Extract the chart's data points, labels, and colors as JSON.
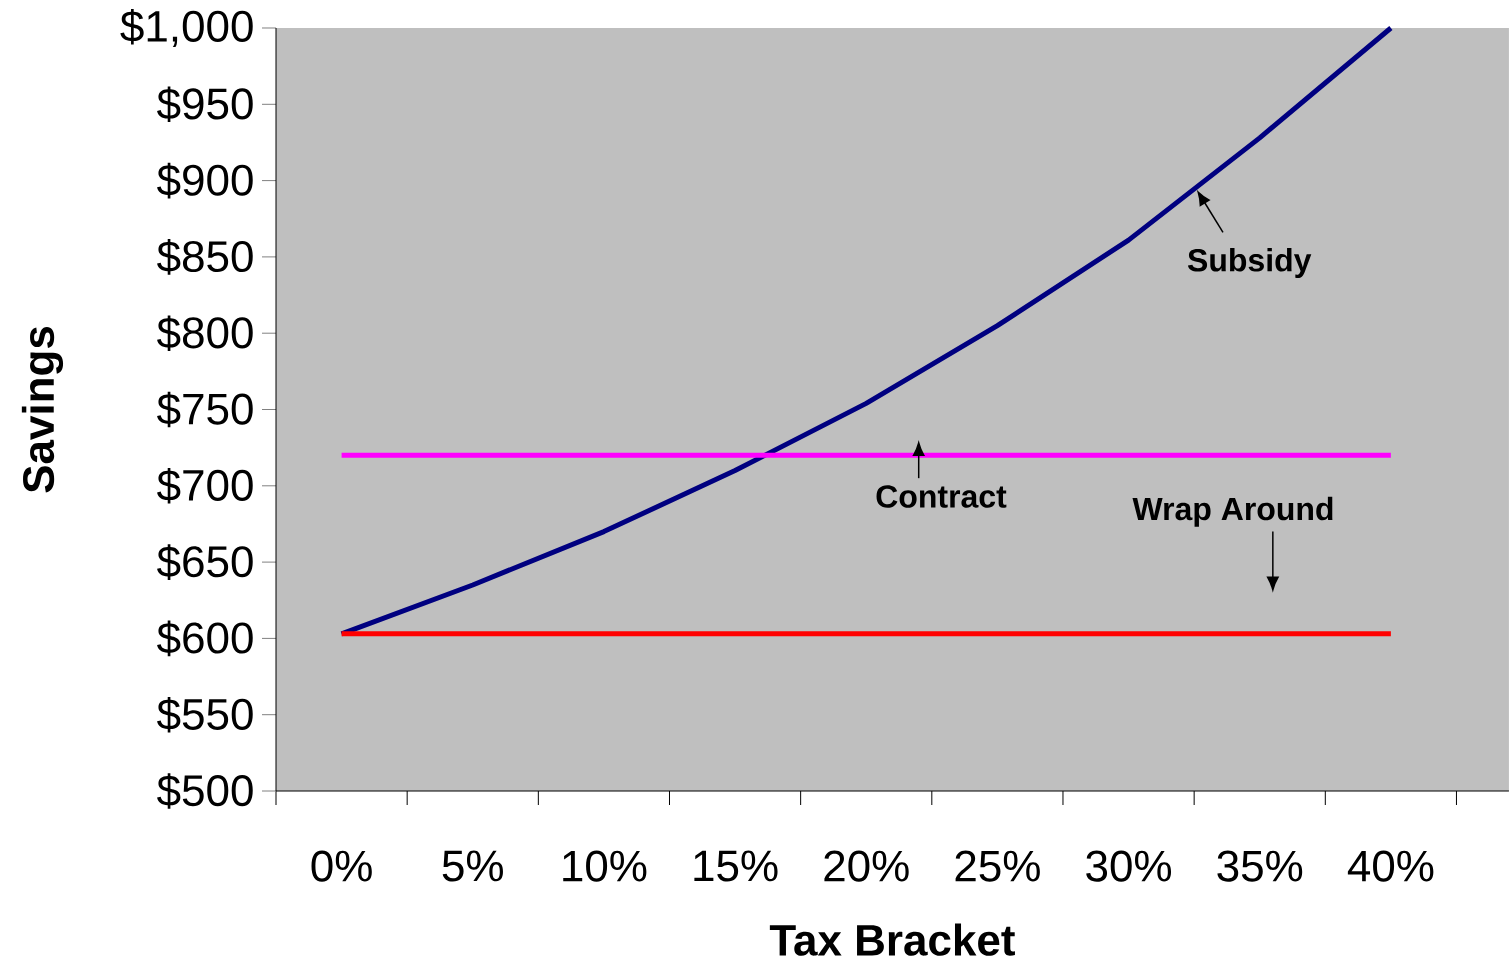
{
  "chart_data": {
    "type": "line",
    "xlabel": "Tax Bracket",
    "ylabel": "Savings",
    "categories": [
      "0%",
      "5%",
      "10%",
      "15%",
      "20%",
      "25%",
      "30%",
      "35%",
      "40%"
    ],
    "series": [
      {
        "name": "Subsidy",
        "color": "#000080",
        "values": [
          603,
          635,
          670,
          710,
          754,
          805,
          861,
          928,
          1000
        ]
      },
      {
        "name": "Contract",
        "color": "#ff00ff",
        "values": [
          720,
          720,
          720,
          720,
          720,
          720,
          720,
          720,
          720
        ]
      },
      {
        "color": "#ff0000",
        "values": [
          603,
          603,
          603,
          603,
          603,
          603,
          603,
          603,
          603
        ]
      }
    ],
    "annotations": [
      "Wrap Around"
    ],
    "ylim": [
      500,
      1000
    ],
    "yticks": [
      {
        "value": 500,
        "label": "$500"
      },
      {
        "value": 550,
        "label": "$550"
      },
      {
        "value": 600,
        "label": "$600"
      },
      {
        "value": 650,
        "label": "$650"
      },
      {
        "value": 700,
        "label": "$700"
      },
      {
        "value": 750,
        "label": "$750"
      },
      {
        "value": 800,
        "label": "$800"
      },
      {
        "value": 850,
        "label": "$850"
      },
      {
        "value": 900,
        "label": "$900"
      },
      {
        "value": 950,
        "label": "$950"
      },
      {
        "value": 1000,
        "label": "$1,000"
      }
    ],
    "grid": false,
    "legend": false,
    "marker": "none",
    "line_style": "solid"
  }
}
